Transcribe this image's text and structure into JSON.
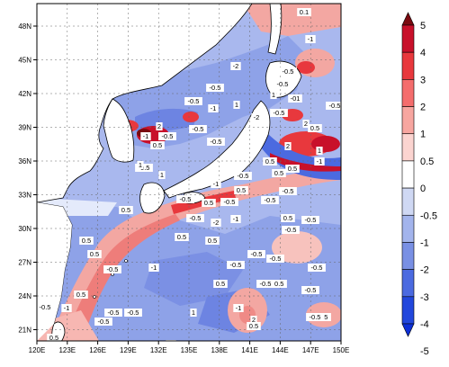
{
  "map": {
    "lat_labels": [
      "48N",
      "45N",
      "42N",
      "39N",
      "36N",
      "33N",
      "30N",
      "27N",
      "24N",
      "21N"
    ],
    "lon_labels": [
      "120E",
      "123E",
      "126E",
      "129E",
      "132E",
      "135E",
      "138E",
      "141E",
      "144E",
      "147E",
      "150E"
    ],
    "lat_values": [
      48,
      45,
      42,
      39,
      36,
      33,
      30,
      27,
      24,
      21
    ],
    "lon_values": [
      120,
      123,
      126,
      129,
      132,
      135,
      138,
      141,
      144,
      147,
      150
    ],
    "extent": {
      "lon": [
        120,
        150
      ],
      "lat": [
        20,
        50
      ]
    },
    "contour_labels": [
      "0.1",
      "-1",
      "-2",
      "-0.5",
      "1",
      "-0.5",
      "2",
      "-0.5",
      "0.5",
      "-1",
      "-0.5",
      "-2",
      "-0.5",
      "0.5",
      "2",
      "1",
      "-1",
      "0.5",
      "-0.5",
      "-1",
      "0.5",
      "0.5",
      "-0.5",
      "-1",
      "-2",
      "-0.5",
      "-0.5",
      "0.5",
      "-0.5",
      "-0.5",
      "-0.5",
      "0.5",
      "0.5",
      "-1",
      "-0.5",
      "0.5",
      "0.5",
      "-0.5",
      "-0.5",
      "1",
      "-1",
      "0.5",
      "-0.5",
      "-0.5",
      "-0.5",
      "-0.5",
      "-0.5",
      "-1",
      "-0.5",
      "2",
      "-0.5",
      "1",
      "0.5",
      "0.5",
      "-0.5",
      "-2",
      "0.5",
      "1",
      "-0.5",
      "-0.5",
      "-0.5",
      "-0.5",
      "1",
      "-01",
      "2",
      "-1",
      "-0.5",
      "0.5",
      "0.5",
      "-0.5",
      "-0.5",
      "-0.5",
      "-0.5",
      "-0.5",
      "0.5"
    ]
  },
  "colorbar": {
    "labels": [
      "5",
      "4",
      "3",
      "2",
      "1",
      "0.5",
      "0",
      "-0.5",
      "-1",
      "-2",
      "-3",
      "-4",
      "-5"
    ],
    "colors": [
      "#7a0a10",
      "#c8102a",
      "#e8383d",
      "#f46d6d",
      "#f7a6a0",
      "#fbd4d0",
      "#ffffff",
      "#cfd8f3",
      "#a3b4ec",
      "#7990e4",
      "#4b6ae0",
      "#2247dc",
      "#0d2fd6"
    ]
  }
}
